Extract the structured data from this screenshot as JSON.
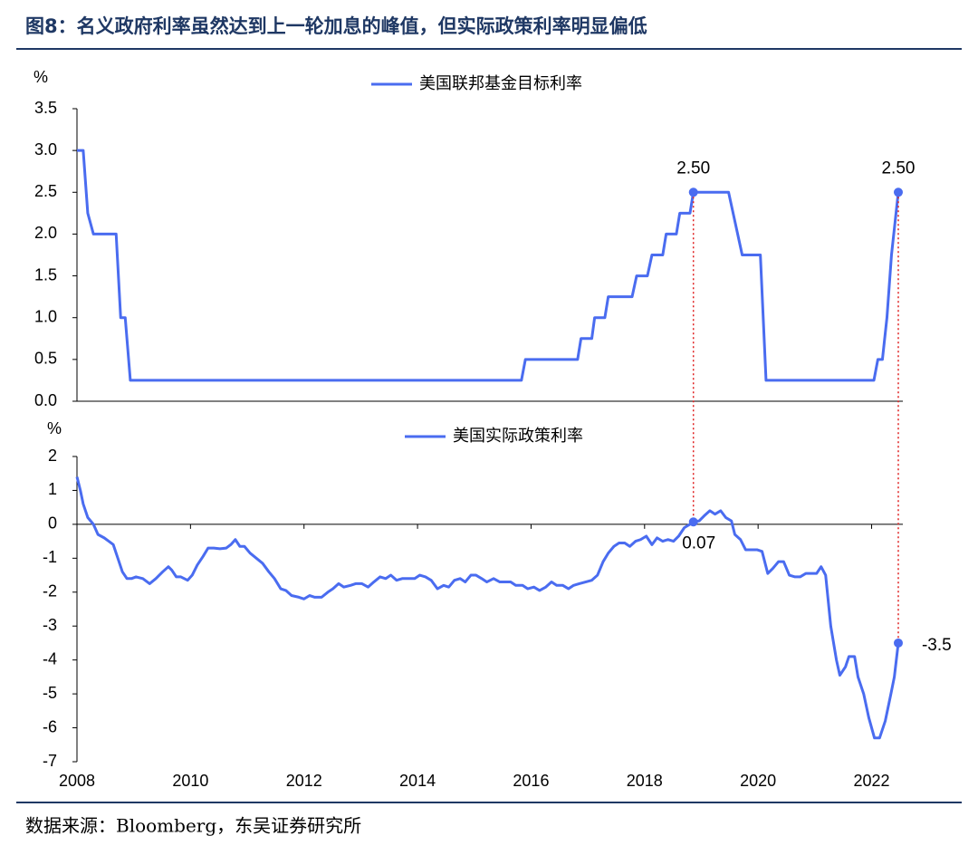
{
  "title": "图8：名义政府利率虽然达到上一轮加息的峰值，但实际政策利率明显偏低",
  "source": "数据来源：Bloomberg，东吴证券研究所",
  "chart_data": [
    {
      "type": "line",
      "y_label": "%",
      "legend_corner": "top",
      "xlim": [
        2008,
        2022.55
      ],
      "ylim": [
        0,
        3.5
      ],
      "yticks": [
        {
          "value": 0,
          "label": "0.0"
        },
        0.5,
        {
          "value": 1,
          "label": "1.0"
        },
        1.5,
        {
          "value": 2,
          "label": "2.0"
        },
        2.5,
        {
          "value": 3,
          "label": "3.0"
        },
        3.5
      ],
      "x": [
        2008.0,
        2008.11,
        2008.19,
        2008.29,
        2008.69,
        2008.77,
        2008.85,
        2008.94,
        2015.83,
        2015.9,
        2016.82,
        2016.88,
        2017.07,
        2017.12,
        2017.3,
        2017.36,
        2017.78,
        2017.86,
        2018.05,
        2018.13,
        2018.32,
        2018.38,
        2018.56,
        2018.62,
        2018.8,
        2018.86,
        2019.48,
        2019.72,
        2020.04,
        2020.14,
        2022.04,
        2022.11,
        2022.19,
        2022.27,
        2022.35,
        2022.47
      ],
      "series": [
        {
          "name": "美国联邦基金目标利率",
          "color": "#4a6cf0",
          "values": [
            3.0,
            3.0,
            2.25,
            2.0,
            2.0,
            1.0,
            1.0,
            0.25,
            0.25,
            0.5,
            0.5,
            0.75,
            0.75,
            1.0,
            1.0,
            1.25,
            1.25,
            1.5,
            1.5,
            1.75,
            1.75,
            2.0,
            2.0,
            2.25,
            2.25,
            2.5,
            2.5,
            1.75,
            1.75,
            0.25,
            0.25,
            0.5,
            0.5,
            1.0,
            1.75,
            2.5
          ]
        }
      ],
      "annotations": [
        {
          "x": 2018.86,
          "y": 2.5,
          "label": "2.50"
        },
        {
          "x": 2022.47,
          "y": 2.5,
          "label": "2.50"
        }
      ]
    },
    {
      "type": "line",
      "y_label": "%",
      "legend_corner": "top",
      "xlim": [
        2008,
        2022.55
      ],
      "ylim": [
        -7,
        2
      ],
      "yticks": [
        -7,
        -6,
        -5,
        -4,
        -3,
        -2,
        -1,
        0,
        1,
        2
      ],
      "xticks": [
        2008,
        2010,
        2012,
        2014,
        2016,
        2018,
        2020,
        2022
      ],
      "x": [
        2008.0,
        2008.06,
        2008.11,
        2008.19,
        2008.29,
        2008.37,
        2008.48,
        2008.56,
        2008.64,
        2008.72,
        2008.8,
        2008.88,
        2008.96,
        2009.04,
        2009.16,
        2009.28,
        2009.39,
        2009.51,
        2009.61,
        2009.67,
        2009.75,
        2009.83,
        2009.95,
        2010.03,
        2010.12,
        2010.22,
        2010.31,
        2010.41,
        2010.52,
        2010.63,
        2010.71,
        2010.79,
        2010.87,
        2010.95,
        2011.05,
        2011.16,
        2011.27,
        2011.38,
        2011.48,
        2011.59,
        2011.68,
        2011.78,
        2011.91,
        2012.0,
        2012.1,
        2012.19,
        2012.31,
        2012.42,
        2012.51,
        2012.61,
        2012.7,
        2012.82,
        2012.91,
        2013.02,
        2013.13,
        2013.23,
        2013.34,
        2013.44,
        2013.53,
        2013.63,
        2013.73,
        2013.85,
        2013.95,
        2014.04,
        2014.14,
        2014.24,
        2014.35,
        2014.46,
        2014.55,
        2014.65,
        2014.75,
        2014.84,
        2014.94,
        2015.03,
        2015.13,
        2015.22,
        2015.34,
        2015.45,
        2015.54,
        2015.64,
        2015.73,
        2015.85,
        2015.94,
        2016.05,
        2016.15,
        2016.26,
        2016.36,
        2016.45,
        2016.56,
        2016.66,
        2016.75,
        2016.85,
        2016.96,
        2017.07,
        2017.17,
        2017.27,
        2017.36,
        2017.46,
        2017.55,
        2017.65,
        2017.74,
        2017.84,
        2017.93,
        2018.03,
        2018.13,
        2018.22,
        2018.32,
        2018.41,
        2018.51,
        2018.6,
        2018.7,
        2018.8,
        2018.86,
        2018.96,
        2019.05,
        2019.15,
        2019.24,
        2019.34,
        2019.43,
        2019.53,
        2019.59,
        2019.69,
        2019.78,
        2019.88,
        2019.98,
        2020.07,
        2020.17,
        2020.26,
        2020.36,
        2020.45,
        2020.55,
        2020.65,
        2020.74,
        2020.84,
        2020.93,
        2021.03,
        2021.11,
        2021.19,
        2021.28,
        2021.38,
        2021.44,
        2021.54,
        2021.6,
        2021.7,
        2021.76,
        2021.86,
        2021.95,
        2022.05,
        2022.14,
        2022.24,
        2022.34,
        2022.4,
        2022.47
      ],
      "series": [
        {
          "name": "美国实际政策利率",
          "color": "#4a6cf0",
          "values": [
            1.4,
            1.0,
            0.6,
            0.2,
            0.0,
            -0.3,
            -0.4,
            -0.5,
            -0.6,
            -1.0,
            -1.4,
            -1.6,
            -1.6,
            -1.55,
            -1.6,
            -1.75,
            -1.6,
            -1.4,
            -1.25,
            -1.35,
            -1.55,
            -1.55,
            -1.65,
            -1.5,
            -1.2,
            -0.95,
            -0.7,
            -0.7,
            -0.72,
            -0.7,
            -0.6,
            -0.45,
            -0.65,
            -0.65,
            -0.85,
            -1.0,
            -1.15,
            -1.4,
            -1.6,
            -1.9,
            -1.95,
            -2.1,
            -2.15,
            -2.2,
            -2.1,
            -2.15,
            -2.15,
            -2.0,
            -1.9,
            -1.75,
            -1.85,
            -1.8,
            -1.75,
            -1.75,
            -1.85,
            -1.7,
            -1.55,
            -1.6,
            -1.5,
            -1.65,
            -1.6,
            -1.6,
            -1.6,
            -1.5,
            -1.55,
            -1.65,
            -1.9,
            -1.8,
            -1.85,
            -1.65,
            -1.6,
            -1.7,
            -1.5,
            -1.5,
            -1.6,
            -1.7,
            -1.6,
            -1.7,
            -1.7,
            -1.7,
            -1.8,
            -1.8,
            -1.9,
            -1.85,
            -1.95,
            -1.85,
            -1.7,
            -1.8,
            -1.8,
            -1.9,
            -1.8,
            -1.75,
            -1.7,
            -1.65,
            -1.5,
            -1.1,
            -0.85,
            -0.65,
            -0.55,
            -0.55,
            -0.65,
            -0.5,
            -0.45,
            -0.35,
            -0.6,
            -0.4,
            -0.5,
            -0.45,
            -0.5,
            -0.35,
            -0.1,
            0.0,
            0.07,
            0.1,
            0.25,
            0.4,
            0.3,
            0.4,
            0.2,
            0.1,
            -0.3,
            -0.45,
            -0.75,
            -0.75,
            -0.75,
            -0.8,
            -1.45,
            -1.3,
            -1.1,
            -1.1,
            -1.5,
            -1.55,
            -1.55,
            -1.45,
            -1.45,
            -1.45,
            -1.25,
            -1.5,
            -3.0,
            -4.0,
            -4.45,
            -4.2,
            -3.9,
            -3.9,
            -4.5,
            -5.0,
            -5.7,
            -6.3,
            -6.3,
            -5.8,
            -5.0,
            -4.5,
            -3.5
          ]
        }
      ],
      "annotations": [
        {
          "x": 2018.86,
          "y": 0.07,
          "label": "0.07"
        },
        {
          "x": 2022.47,
          "y": -3.5,
          "label": "-3.5"
        }
      ]
    }
  ]
}
